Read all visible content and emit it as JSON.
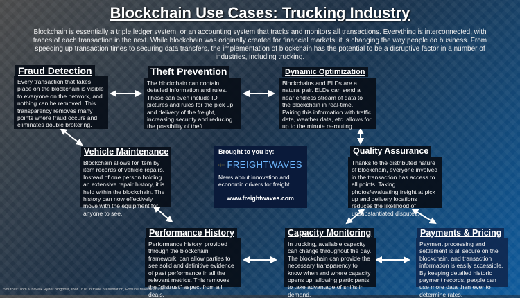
{
  "title": "Blockchain Use Cases: Trucking Industry",
  "intro": "Blockchain is essentially a triple ledger system, or an accounting system that tracks and monitors all transactions. Everything is interconnected, with traces of each transaction in the next. While blockchain was originally created for financial markets, it is changing the way people do business. From speeding up transaction times to securing data transfers, the implementation of blockchain has the potential to be a disruptive factor in a number of industries, including trucking.",
  "cards": {
    "fraud": {
      "title": "Fraud Detection",
      "body": "Every transaction that takes place on the blockchain is visible to everyone on the network, and nothing can be removed. This transparency removes many points where fraud occurs and eliminates double brokering."
    },
    "theft": {
      "title": "Theft Prevention",
      "body": "The blockchain can contain detailed information and rules. These can even include ID pictures and rules for the pick up and delivery of the freight, increasing security and reducing the possibility of theft."
    },
    "dynamic": {
      "title": "Dynamic Optimization",
      "body": "Blockchains and ELDs are a natural pair. ELDs can send a near endless stream of data to the blockchain in real-time. Pairing this information with traffic data, weather data, etc. allows for up to the minute re-routing."
    },
    "vehicle": {
      "title": "Vehicle Maintenance",
      "body": "Blockchain allows for item by item records of vehicle repairs. Instead of one person holding an extensive repair history, it is held within the blockchain. The history can now effectively move with the equipment for anyone to see."
    },
    "quality": {
      "title": "Quality Assurance",
      "body": "Thanks to the distributed nature of blockchain, everyone involved in the transaction has access to all points. Taking photos/evaluating freight at pick up and delivery locations reduces the likelihood of unsubstantiated disputes."
    },
    "performance": {
      "title": "Performance History",
      "body": "Performance history, provided through the blockchain framework, can allow parties to see solid and definitive evidence of past performance in all the relevant metrics. This removes the \"distrust\" aspect from all deals."
    },
    "capacity": {
      "title": "Capacity Monitoring",
      "body": "In trucking, available capacity can change throughout the day. The blockchain can provide the necessary transparency to know when and where capacity opens up, allowing participants to take advantage of shifts in demand."
    },
    "payments": {
      "title": "Payments & Pricing",
      "body": "Payment processing and settlement is all secure on the blockchain, and transaction information is easily accessible. By keeping detailed historic payment records, people can use more data than ever to determine rates."
    }
  },
  "sponsor": {
    "label": "Brought to you by:",
    "logo_text": "FREIGHTWAVES",
    "description": "News about innovation and economic drivers for freight",
    "url": "www.freightwaves.com"
  },
  "sources": "Sources: Tom Kroswek Ryder blogpost, IBM Trust in trade presentation, Fortune Maersk article",
  "colors": {
    "arrow": "#ffffff",
    "logo_blue": "#6fb8ff",
    "box_dark": "#080e18"
  }
}
